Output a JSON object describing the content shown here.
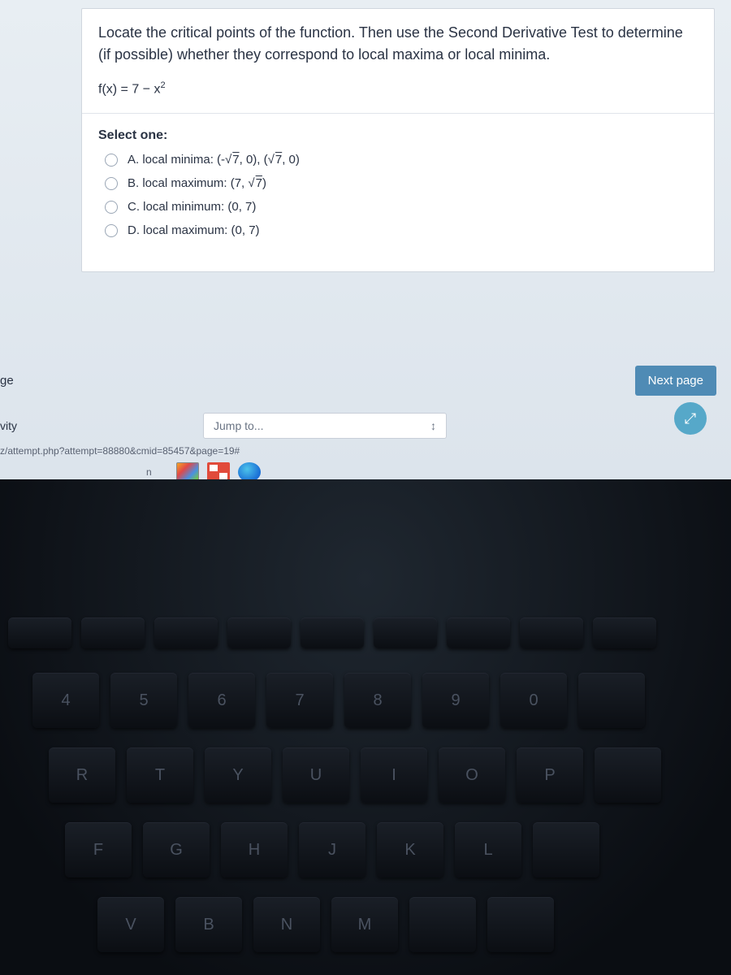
{
  "question": {
    "prompt_text": "Locate the critical points of the function. Then use the Second Derivative Test to determine (if possible) whether they correspond to local maxima or local minima.",
    "formula_html": "f(x) = 7 − x²",
    "select_label": "Select one:",
    "options": {
      "a": "A. local minima: (-√7, 0), (√7, 0)",
      "b": "B. local maximum: (7, √7)",
      "c": "C. local minimum: (0, 7)",
      "d": "D. local maximum: (0, 7)"
    }
  },
  "nav": {
    "prev_fragment": "ge",
    "next_label": "Next page",
    "activity_fragment": "vity",
    "jump_placeholder": "Jump to...",
    "url_fragment": "z/attempt.php?attempt=88880&cmid=85457&page=19#",
    "n_fragment": "n"
  },
  "colors": {
    "page_bg": "#e8eef3",
    "card_bg": "#ffffff",
    "text": "#2a3344",
    "next_btn_bg": "#4f8bb5",
    "fab_bg": "#56a8c9"
  },
  "keyboard": {
    "row1": [
      "4",
      "5",
      "6",
      "7",
      "8",
      "9",
      "0"
    ],
    "row2": [
      "R",
      "T",
      "Y",
      "U",
      "I",
      "O",
      "P"
    ],
    "row3": [
      "F",
      "G",
      "H",
      "J",
      "K",
      "L"
    ],
    "row4": [
      "V",
      "B",
      "N",
      "M"
    ]
  }
}
